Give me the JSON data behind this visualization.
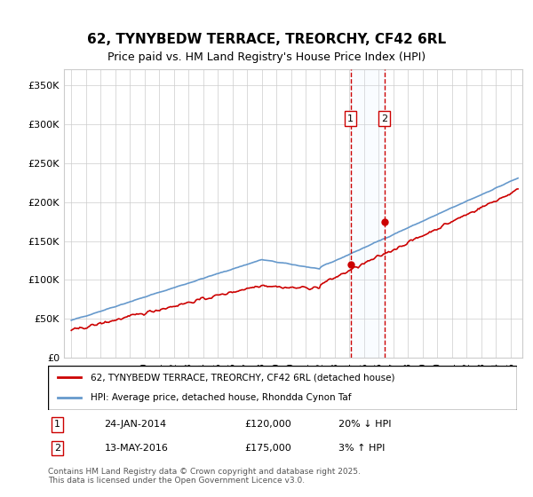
{
  "title": "62, TYNYBEDW TERRACE, TREORCHY, CF42 6RL",
  "subtitle": "Price paid vs. HM Land Registry's House Price Index (HPI)",
  "legend_line1": "62, TYNYBEDW TERRACE, TREORCHY, CF42 6RL (detached house)",
  "legend_line2": "HPI: Average price, detached house, Rhondda Cynon Taf",
  "transaction1_label": "1",
  "transaction1_date": "24-JAN-2014",
  "transaction1_price": "£120,000",
  "transaction1_hpi": "20% ↓ HPI",
  "transaction2_label": "2",
  "transaction2_date": "13-MAY-2016",
  "transaction2_price": "£175,000",
  "transaction2_hpi": "3% ↑ HPI",
  "footer": "Contains HM Land Registry data © Crown copyright and database right 2025.\nThis data is licensed under the Open Government Licence v3.0.",
  "red_color": "#cc0000",
  "blue_color": "#6699cc",
  "shade_color": "#ddeeff",
  "ylim": [
    0,
    370000
  ],
  "yticks": [
    0,
    50000,
    100000,
    150000,
    200000,
    250000,
    300000,
    350000
  ],
  "ytick_labels": [
    "£0",
    "£50K",
    "£100K",
    "£150K",
    "£200K",
    "£250K",
    "£300K",
    "£350K"
  ],
  "background_color": "#ffffff",
  "grid_color": "#cccccc"
}
